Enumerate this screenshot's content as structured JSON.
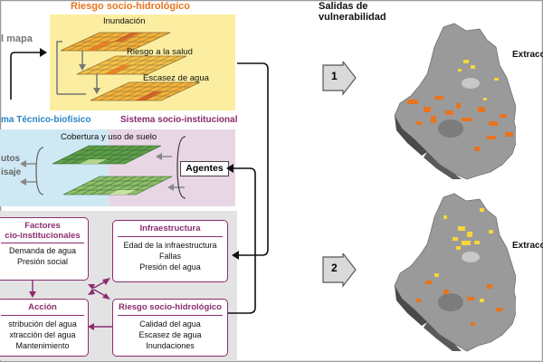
{
  "top": {
    "title": "Riesgo socio-hidrológico",
    "left_fragment": "l mapa",
    "layers": [
      "Inundación",
      "Riesgo a la salud",
      "Escasez de agua"
    ]
  },
  "systems": {
    "biophysical_fragment": "ma Técnico-biofísico",
    "institutional": "Sistema socio-institucional",
    "land_cover": "Cobertura y uso de suelo",
    "left_frag_1": "utos",
    "left_frag_2": "isaje",
    "agents": "Agentes"
  },
  "boxes": {
    "factores": {
      "title_1": "Factores",
      "title_2": "cio-institucionales",
      "lines": [
        "Demanda de agua",
        "Presión social"
      ]
    },
    "infra": {
      "title": "Infraestructura",
      "lines": [
        "Edad de la infraestructura",
        "Fallas",
        "Presión del agua"
      ]
    },
    "accion": {
      "title": "Acción",
      "lines": [
        "stribución del agua",
        "xtracción del agua",
        "Mantenimiento"
      ]
    },
    "riesgo": {
      "title": "Riesgo socio-hidrológico",
      "lines": [
        "Calidad del agua",
        "Escasez de agua",
        "Inundaciones"
      ]
    }
  },
  "outputs": {
    "title_1": "Salidas de",
    "title_2": "vulnerabilidad",
    "step1": "1",
    "step2": "2",
    "extr_1": "Extracc",
    "extr_2": "Extracc"
  },
  "colors": {
    "orange": "#e8741e",
    "purple": "#8b2c6f",
    "blue": "#2b84c6",
    "yellow_patch": "#f7d53a"
  }
}
